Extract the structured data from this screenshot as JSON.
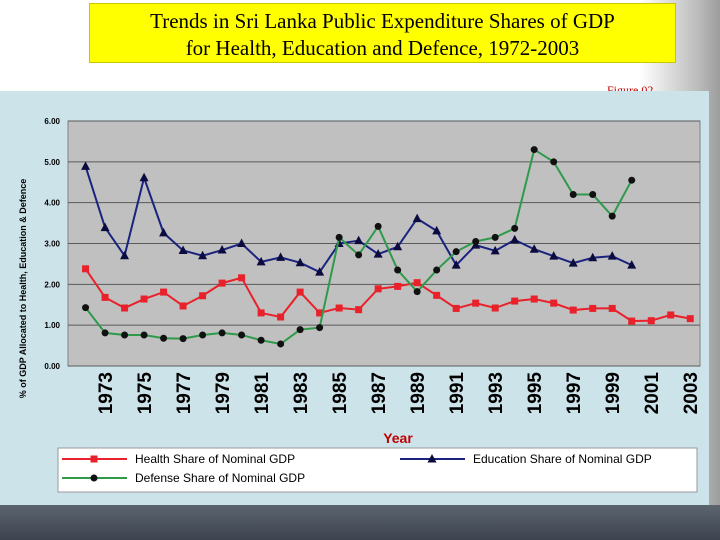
{
  "title_lines": [
    "Trends in Sri Lanka Public Expenditure Shares of GDP",
    "for Health, Education and Defence, 1972-2003"
  ],
  "figure_label": "Figure 02",
  "colors": {
    "title_bg": "#ffff00",
    "panel_bg": "#cde3ea",
    "plot_bg": "#c0c0c0",
    "health": "#e8212a",
    "education": "#1a237e",
    "defense": "#2e9a4a"
  },
  "chart_data": {
    "type": "line",
    "title": "",
    "xlabel": "Year",
    "ylabel": "% of GDP Allocated to Health, Education & Defence",
    "ylim": [
      0,
      6
    ],
    "yticks": [
      "0.00",
      "1.00",
      "2.00",
      "3.00",
      "4.00",
      "5.00",
      "6.00"
    ],
    "x_range": [
      1972,
      2003
    ],
    "xticks": [
      "1973",
      "1975",
      "1977",
      "1979",
      "1981",
      "1983",
      "1985",
      "1987",
      "1989",
      "1991",
      "1993",
      "1995",
      "1997",
      "1999",
      "2001",
      "2003"
    ],
    "grid": "horizontal",
    "legend_position": "bottom",
    "series": [
      {
        "name": "Health Share of Nominal GDP",
        "marker": "square",
        "color": "#e8212a",
        "x": [
          1972,
          1973,
          1974,
          1975,
          1976,
          1977,
          1978,
          1979,
          1980,
          1981,
          1982,
          1983,
          1984,
          1985,
          1986,
          1987,
          1988,
          1989,
          1990,
          1991,
          1992,
          1993,
          1994,
          1995,
          1996,
          1997,
          1998,
          1999,
          2000,
          2001,
          2002,
          2003
        ],
        "values": [
          2.38,
          1.68,
          1.42,
          1.64,
          1.81,
          1.47,
          1.72,
          2.03,
          2.16,
          1.3,
          1.2,
          1.81,
          1.3,
          1.42,
          1.38,
          1.89,
          1.95,
          2.04,
          1.73,
          1.41,
          1.54,
          1.42,
          1.59,
          1.64,
          1.54,
          1.37,
          1.41,
          1.41,
          1.1,
          1.11,
          1.25,
          1.16
        ]
      },
      {
        "name": "Education Share of Nominal GDP",
        "marker": "triangle",
        "color": "#1a237e",
        "x": [
          1972,
          1973,
          1974,
          1975,
          1976,
          1977,
          1978,
          1979,
          1980,
          1981,
          1982,
          1983,
          1984,
          1985,
          1986,
          1987,
          1988,
          1989,
          1990,
          1991,
          1992,
          1993,
          1994,
          1995,
          1996,
          1997,
          1998,
          1999,
          2000
        ],
        "values": [
          4.89,
          3.39,
          2.7,
          4.61,
          3.26,
          2.83,
          2.7,
          2.84,
          3.0,
          2.55,
          2.66,
          2.53,
          2.3,
          3.0,
          3.07,
          2.74,
          2.92,
          3.61,
          3.31,
          2.47,
          2.96,
          2.82,
          3.09,
          2.86,
          2.69,
          2.52,
          2.65,
          2.69,
          2.47
        ]
      },
      {
        "name": "Defense Share of Nominal GDP",
        "marker": "circle",
        "color": "#2e9a4a",
        "x": [
          1972,
          1973,
          1974,
          1975,
          1976,
          1977,
          1978,
          1979,
          1980,
          1981,
          1982,
          1983,
          1984,
          1985,
          1986,
          1987,
          1988,
          1989,
          1990,
          1991,
          1992,
          1993,
          1994,
          1995,
          1996,
          1997,
          1998,
          1999,
          2000
        ],
        "values": [
          1.43,
          0.81,
          0.76,
          0.76,
          0.68,
          0.67,
          0.76,
          0.81,
          0.76,
          0.63,
          0.54,
          0.89,
          0.94,
          3.15,
          2.72,
          3.42,
          2.35,
          1.82,
          2.35,
          2.8,
          3.05,
          3.15,
          3.37,
          5.3,
          5.0,
          4.2,
          4.2,
          3.67,
          4.55
        ]
      }
    ]
  }
}
